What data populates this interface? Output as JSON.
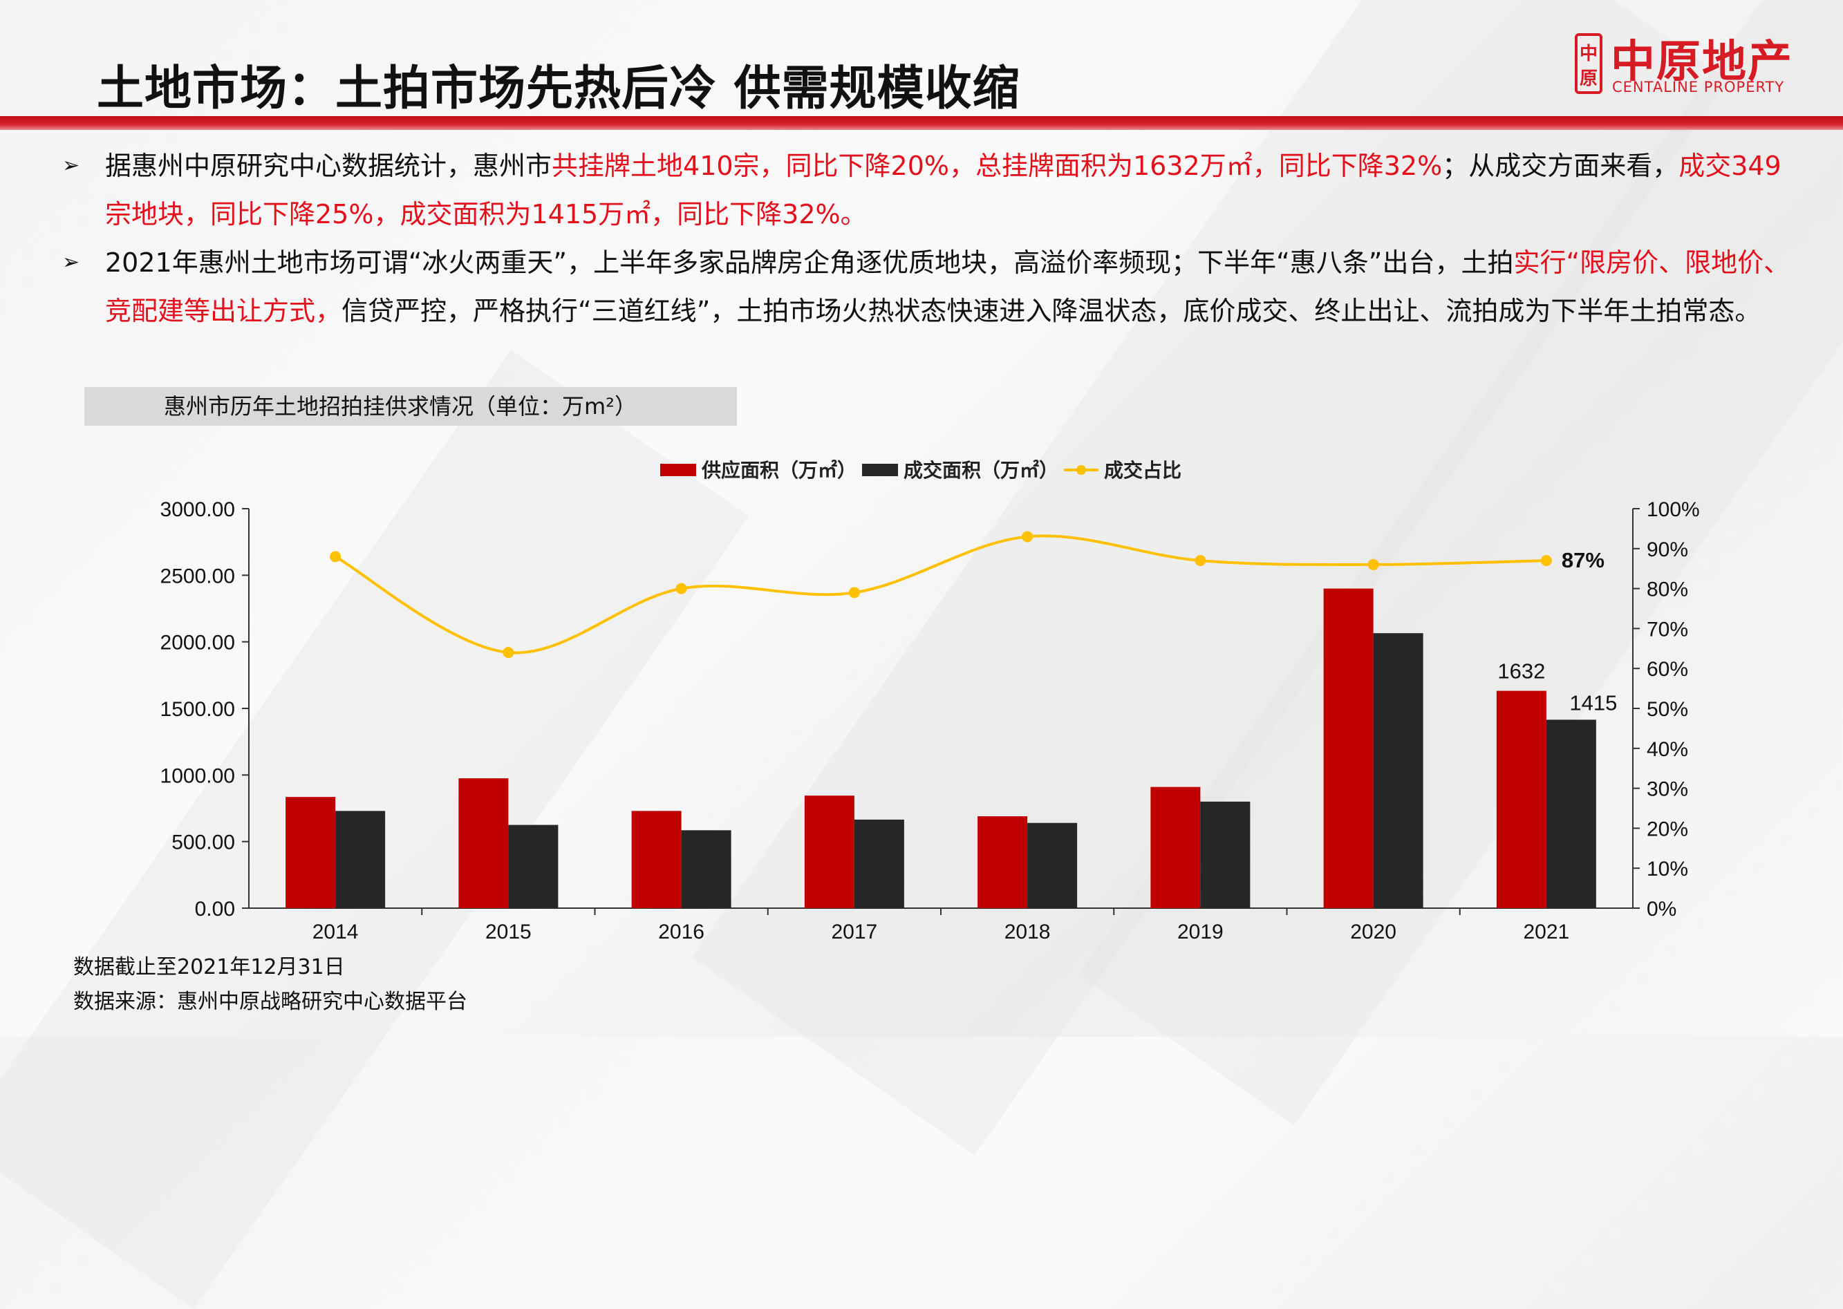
{
  "header": {
    "title": "土地市场：土拍市场先热后冷 供需规模收缩",
    "logo_cn": "中原地产",
    "logo_en": "CENTALINE PROPERTY",
    "logo_mark": "中原"
  },
  "bullets": [
    {
      "segments": [
        {
          "text": "据惠州中原研究中心数据统计，惠州市",
          "highlight": false
        },
        {
          "text": "共挂牌土地410宗，同比下降20%，总挂牌面积为1632万㎡，同比下降32%",
          "highlight": true
        },
        {
          "text": "；从成交方面来看，",
          "highlight": false
        },
        {
          "text": "成交349宗地块，同比下降25%，成交面积为1415万㎡，同比下降32%。",
          "highlight": true
        }
      ]
    },
    {
      "segments": [
        {
          "text": "2021年惠州土地市场可谓“冰火两重天”，上半年多家品牌房企角逐优质地块，高溢价率频现；下半年“惠八条”出台，土拍",
          "highlight": false
        },
        {
          "text": "实行“限房价、限地价、竞配建等出让方式，",
          "highlight": true
        },
        {
          "text": "信贷严控，严格执行“三道红线”，土拍市场火热状态快速进入降温状态，底价成交、终止出让、流拍成为下半年土拍常态。",
          "highlight": false
        }
      ]
    }
  ],
  "chart_title": "惠州市历年土地招拍挂供求情况（单位：万m²）",
  "chart_data": {
    "type": "bar",
    "categories": [
      "2014",
      "2015",
      "2016",
      "2017",
      "2018",
      "2019",
      "2020",
      "2021"
    ],
    "series": [
      {
        "name": "供应面积（万㎡）",
        "type": "bar",
        "axis": "left",
        "color": "#c00000",
        "values": [
          835,
          975,
          730,
          845,
          690,
          910,
          2400,
          1632
        ]
      },
      {
        "name": "成交面积（万㎡）",
        "type": "bar",
        "axis": "left",
        "color": "#262626",
        "values": [
          730,
          625,
          585,
          665,
          640,
          800,
          2065,
          1415
        ]
      },
      {
        "name": "成交占比",
        "type": "line",
        "axis": "right",
        "color": "#ffc000",
        "values": [
          88,
          64,
          80,
          79,
          93,
          87,
          86,
          87
        ]
      }
    ],
    "y_left": {
      "min": 0,
      "max": 3000,
      "ticks": [
        "0.00",
        "500.00",
        "1000.00",
        "1500.00",
        "2000.00",
        "2500.00",
        "3000.00"
      ]
    },
    "y_right": {
      "min": 0,
      "max": 100,
      "ticks": [
        "0%",
        "10%",
        "20%",
        "30%",
        "40%",
        "50%",
        "60%",
        "70%",
        "80%",
        "90%",
        "100%"
      ]
    },
    "data_labels": [
      {
        "series": 0,
        "index": 7,
        "text": "1632"
      },
      {
        "series": 1,
        "index": 7,
        "text": "1415"
      },
      {
        "series": 2,
        "index": 7,
        "text": "87%"
      }
    ],
    "legend_position": "top-center",
    "grid": false
  },
  "notes": {
    "cutoff": "数据截止至2021年12月31日",
    "source": "数据来源：惠州中原战略研究中心数据平台"
  }
}
